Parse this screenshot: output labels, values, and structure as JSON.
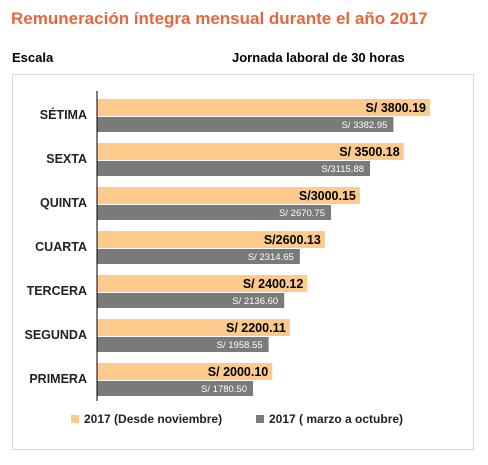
{
  "header": {
    "title": "Remuneración íntegra mensual durante el año 2017",
    "left_label": "Escala",
    "right_label": "Jornada laboral de 30 horas"
  },
  "colors": {
    "title": "#e8663d",
    "series_a": "#fccb8c",
    "series_b": "#7a7a7a",
    "axis": "#000000"
  },
  "chart_data": {
    "type": "bar",
    "orientation": "horizontal",
    "categories": [
      "SÉTIMA",
      "SEXTA",
      "QUINTA",
      "CUARTA",
      "TERCERA",
      "SEGUNDA",
      "PRIMERA"
    ],
    "series": [
      {
        "name": "2017 (Desde noviembre)",
        "values": [
          3800.19,
          3500.18,
          3000.15,
          2600.13,
          2400.12,
          2200.11,
          2000.1
        ],
        "labels": [
          "S/ 3800.19",
          "S/ 3500.18",
          "S/3000.15",
          "S/2600.13",
          "S/ 2400.12",
          "S/ 2200.11",
          "S/ 2000.10"
        ]
      },
      {
        "name": "2017 ( marzo a octubre)",
        "values": [
          3382.95,
          3115.88,
          2670.75,
          2314.65,
          2136.6,
          1958.55,
          1780.5
        ],
        "labels": [
          "S/ 3382.95",
          "S/3115.88",
          "S/ 2670.75",
          "S/ 2314.65",
          "S/ 2136.60",
          "S/ 1958.55",
          "S/ 1780.50"
        ]
      }
    ],
    "xlim": [
      0,
      3800.19
    ],
    "grid": false,
    "legend_position": "bottom"
  }
}
